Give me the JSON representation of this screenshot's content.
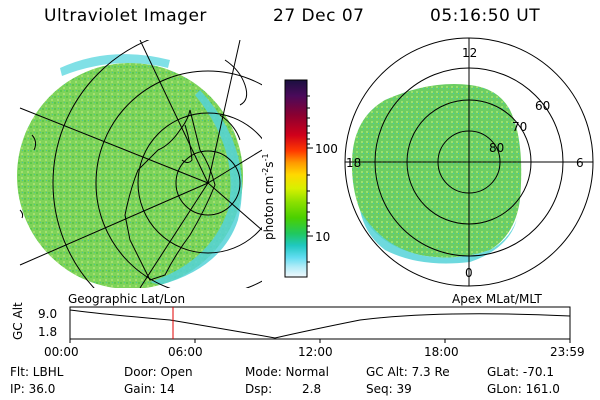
{
  "header": {
    "instrument": "Ultraviolet Imager",
    "date": "27 Dec 07",
    "time": "05:16:50 UT"
  },
  "colorbar": {
    "ticks": [
      "100",
      "10"
    ],
    "unit_label": "photon cm",
    "unit_exp1": "-2",
    "unit_s": "s",
    "unit_exp2": "-1",
    "colors": [
      "#1b1040",
      "#4a0a5a",
      "#8c0030",
      "#d0001a",
      "#ff3a00",
      "#ff9a00",
      "#ffd800",
      "#d8f000",
      "#8ce000",
      "#4ad000",
      "#20c860",
      "#20c8c0",
      "#60dcf0",
      "#b4ecf8",
      "#f0f8fc"
    ]
  },
  "polar_plot": {
    "labels": {
      "top": "12",
      "left": "18",
      "right": "6",
      "bottom": "0"
    },
    "lat_labels": [
      "60",
      "70",
      "80"
    ]
  },
  "timeline": {
    "left_label": "Geographic Lat/Lon",
    "right_label": "Apex MLat/MLT",
    "y_title": "GC Alt",
    "y_ticks": [
      "9.0",
      "1.8"
    ],
    "x_ticks": [
      "00:00",
      "06:00",
      "12:00",
      "18:00",
      "23:59"
    ],
    "marker_time": "05:16"
  },
  "info": {
    "filter": "Flt: LBHL",
    "ip": "IP: 36.0",
    "door": "Door: Open",
    "gain": "Gain: 14",
    "mode": "Mode: Normal",
    "dsp_label": "Dsp:",
    "dsp_value": "2.8",
    "gc_alt": "GC Alt: 7.3 Re",
    "seq": "Seq: 39",
    "glat": "GLat: -70.1",
    "glon": "GLon: 161.0"
  }
}
